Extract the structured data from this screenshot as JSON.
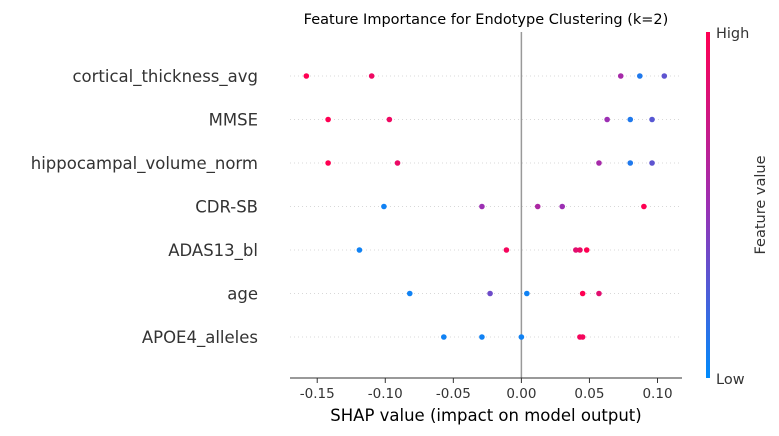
{
  "chart_data": {
    "type": "scatter",
    "title": "Feature Importance for Endotype Clustering (k=2)",
    "xlabel": "SHAP value (impact on model output)",
    "xlim": [
      -0.17,
      0.118
    ],
    "xticks": [
      "-0.15",
      "-0.10",
      "-0.05",
      "0.00",
      "0.05",
      "0.10"
    ],
    "xtick_values": [
      -0.15,
      -0.1,
      -0.05,
      0.0,
      0.05,
      0.1
    ],
    "zero_line": 0.0,
    "grid": "dotted-horizontal",
    "colors": {
      "low": "#008bfb",
      "mid": "#9c2fb3",
      "high": "#ff0052"
    },
    "colorbar": {
      "label": "Feature value",
      "high": "High",
      "low": "Low"
    },
    "features": [
      {
        "name": "cortical_thickness_avg",
        "points": [
          {
            "x": -0.158,
            "v": 1.0
          },
          {
            "x": -0.11,
            "v": 0.92
          },
          {
            "x": 0.073,
            "v": 0.55
          },
          {
            "x": 0.087,
            "v": 0.1
          },
          {
            "x": 0.105,
            "v": 0.3
          }
        ]
      },
      {
        "name": "MMSE",
        "points": [
          {
            "x": -0.142,
            "v": 1.0
          },
          {
            "x": -0.097,
            "v": 0.92
          },
          {
            "x": 0.063,
            "v": 0.5
          },
          {
            "x": 0.08,
            "v": 0.1
          },
          {
            "x": 0.096,
            "v": 0.28
          }
        ]
      },
      {
        "name": "hippocampal_volume_norm",
        "points": [
          {
            "x": -0.142,
            "v": 1.0
          },
          {
            "x": -0.091,
            "v": 0.9
          },
          {
            "x": 0.057,
            "v": 0.55
          },
          {
            "x": 0.08,
            "v": 0.1
          },
          {
            "x": 0.096,
            "v": 0.3
          }
        ]
      },
      {
        "name": "CDR-SB",
        "points": [
          {
            "x": -0.101,
            "v": 0.05
          },
          {
            "x": -0.029,
            "v": 0.5
          },
          {
            "x": 0.012,
            "v": 0.58
          },
          {
            "x": 0.03,
            "v": 0.5
          },
          {
            "x": 0.09,
            "v": 1.0
          }
        ]
      },
      {
        "name": "ADAS13_bl",
        "points": [
          {
            "x": -0.119,
            "v": 0.05
          },
          {
            "x": -0.011,
            "v": 0.95
          },
          {
            "x": 0.04,
            "v": 0.85
          },
          {
            "x": 0.043,
            "v": 0.9
          },
          {
            "x": 0.048,
            "v": 1.0
          }
        ]
      },
      {
        "name": "age",
        "points": [
          {
            "x": -0.082,
            "v": 0.05
          },
          {
            "x": -0.023,
            "v": 0.35
          },
          {
            "x": 0.004,
            "v": 0.05
          },
          {
            "x": 0.045,
            "v": 1.0
          },
          {
            "x": 0.057,
            "v": 0.85
          }
        ]
      },
      {
        "name": "APOE4_alleles",
        "points": [
          {
            "x": -0.057,
            "v": 0.05
          },
          {
            "x": -0.029,
            "v": 0.05
          },
          {
            "x": 0.0,
            "v": 0.05
          },
          {
            "x": 0.043,
            "v": 0.95
          },
          {
            "x": 0.045,
            "v": 0.95
          }
        ]
      }
    ]
  }
}
